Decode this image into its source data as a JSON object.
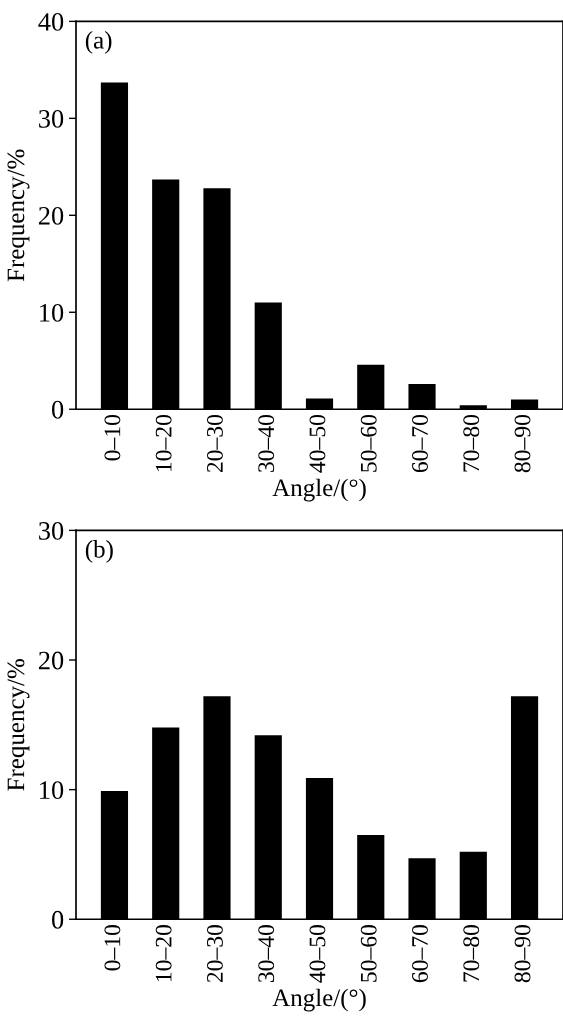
{
  "chart_data": [
    {
      "type": "bar",
      "xlabel": "Angle/(°)",
      "ylabel": "Frequency/%",
      "annotations": [
        "(a)"
      ],
      "color": "#000000",
      "categories": [
        "0–10",
        "10–20",
        "20–30",
        "30–40",
        "40–50",
        "50–60",
        "60–70",
        "70–80",
        "80–90"
      ],
      "values": [
        33.7,
        23.7,
        22.8,
        11.0,
        1.1,
        4.6,
        2.6,
        0.4,
        1.0
      ],
      "ylim": [
        0,
        40
      ],
      "yticks": [
        0,
        10,
        20,
        30,
        40
      ],
      "grid": false
    },
    {
      "type": "bar",
      "xlabel": "Angle/(°)",
      "ylabel": "Frequency/%",
      "annotations": [
        "(b)"
      ],
      "color": "#000000",
      "categories": [
        "0–10",
        "10–20",
        "20–30",
        "30–40",
        "40–50",
        "50–60",
        "60–70",
        "70–80",
        "80–90"
      ],
      "values": [
        9.9,
        14.8,
        17.2,
        14.2,
        10.9,
        6.5,
        4.7,
        5.2,
        17.2
      ],
      "ylim": [
        0,
        30
      ],
      "yticks": [
        0,
        10,
        20,
        30
      ],
      "grid": false
    }
  ]
}
